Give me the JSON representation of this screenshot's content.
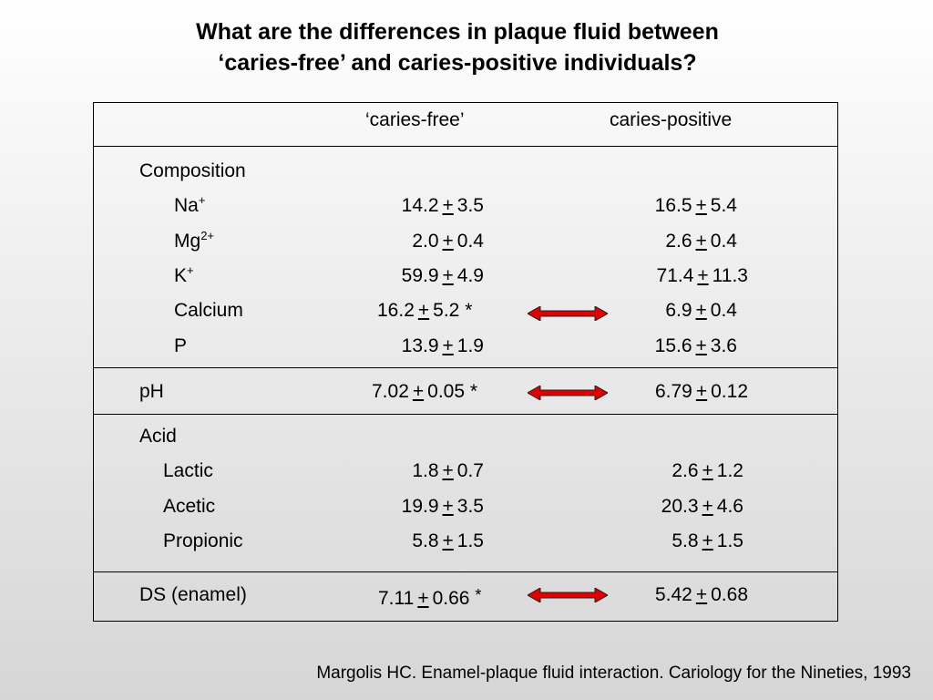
{
  "title": {
    "line1": "What are the differences in plaque fluid between",
    "line2": "‘caries-free’ and caries-positive individuals?"
  },
  "table": {
    "col_headers": {
      "caries_free": "‘caries-free’",
      "caries_positive": "caries-positive"
    },
    "composition": {
      "label": "Composition",
      "rows": [
        {
          "name": "Na",
          "sup": "+",
          "cf": {
            "mean": "14.2",
            "pm": "+",
            "sd": "3.5",
            "star": ""
          },
          "cp": {
            "mean": "16.5",
            "pm": "+",
            "sd": "5.4"
          }
        },
        {
          "name": "Mg",
          "sup": "2+",
          "cf": {
            "mean": "2.0",
            "pm": "+",
            "sd": "0.4",
            "star": ""
          },
          "cp": {
            "mean": "2.6",
            "pm": "+",
            "sd": "0.4"
          }
        },
        {
          "name": "K",
          "sup": "+",
          "cf": {
            "mean": "59.9",
            "pm": "+",
            "sd": "4.9",
            "star": ""
          },
          "cp": {
            "mean": "71.4",
            "pm": "+",
            "sd": "11.3"
          }
        },
        {
          "name": "Calcium",
          "sup": "",
          "cf": {
            "mean": "16.2",
            "pm": "+",
            "sd": "5.2",
            "star": "*"
          },
          "cp": {
            "mean": "6.9",
            "pm": "+",
            "sd": "0.4"
          }
        },
        {
          "name": "P",
          "sup": "",
          "cf": {
            "mean": "13.9",
            "pm": "+",
            "sd": "1.9",
            "star": ""
          },
          "cp": {
            "mean": "15.6",
            "pm": "+",
            "sd": "3.6"
          }
        }
      ]
    },
    "ph": {
      "label": "pH",
      "cf": {
        "mean": "7.02",
        "pm": "+",
        "sd": "0.05",
        "star": "*"
      },
      "cp": {
        "mean": "6.79",
        "pm": "+",
        "sd": "0.12"
      }
    },
    "acid": {
      "label": "Acid",
      "rows": [
        {
          "name": "Lactic",
          "cf": {
            "mean": "1.8",
            "pm": "+",
            "sd": "0.7"
          },
          "cp": {
            "mean": "2.6",
            "pm": "+",
            "sd": "1.2"
          }
        },
        {
          "name": "Acetic",
          "cf": {
            "mean": "19.9",
            "pm": "+",
            "sd": "3.5"
          },
          "cp": {
            "mean": "20.3",
            "pm": "+",
            "sd": "4.6"
          }
        },
        {
          "name": "Propionic",
          "cf": {
            "mean": "5.8",
            "pm": "+",
            "sd": "1.5"
          },
          "cp": {
            "mean": "5.8",
            "pm": "+",
            "sd": "1.5"
          }
        }
      ]
    },
    "ds": {
      "label": "DS (enamel)",
      "cf": {
        "mean": "7.11",
        "pm": "+",
        "sd": "0.66",
        "star": "*"
      },
      "cp": {
        "mean": "5.42",
        "pm": "+",
        "sd": "0.68"
      }
    }
  },
  "arrow_color": "#e00000",
  "citation": "Margolis HC.  Enamel-plaque fluid interaction.  Cariology for the Nineties, 1993"
}
